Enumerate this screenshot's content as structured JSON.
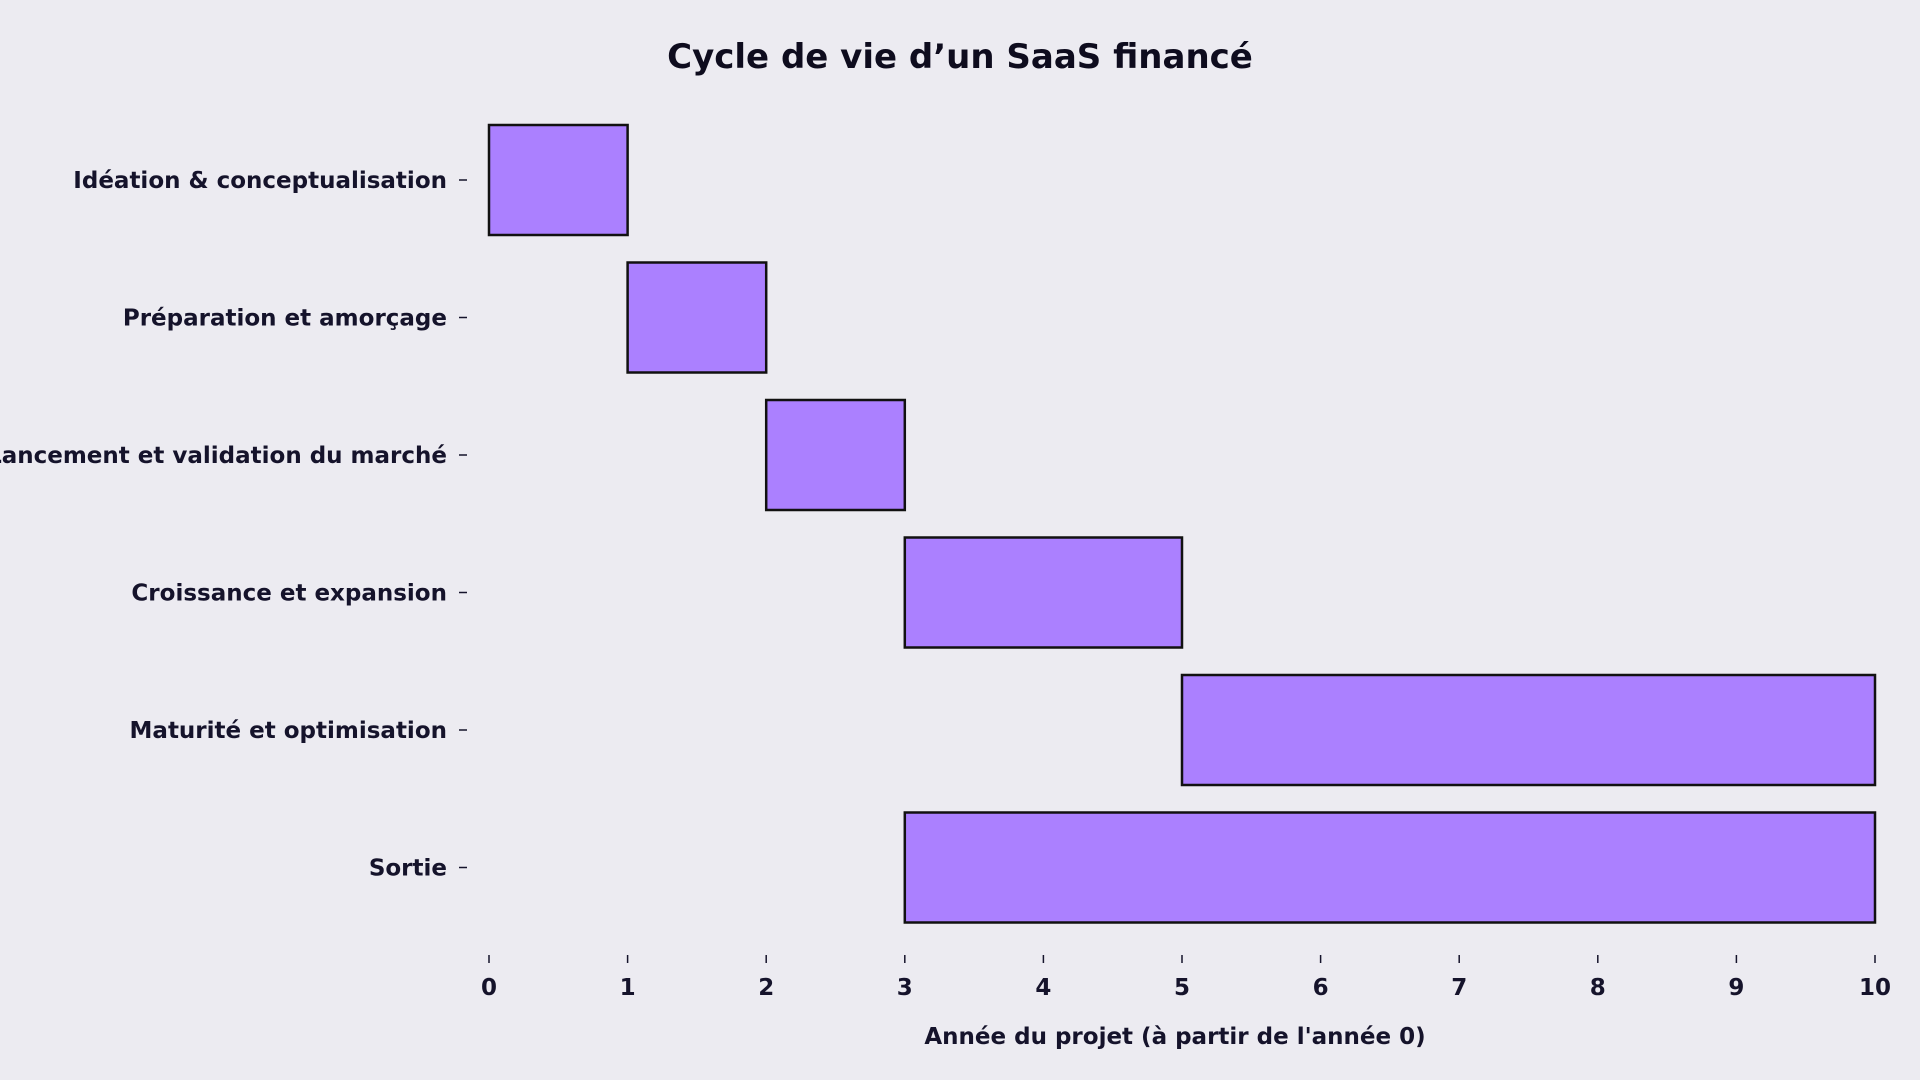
{
  "chart_data": {
    "type": "bar",
    "orientation": "horizontal",
    "title": "Cycle de vie d’un SaaS financé",
    "xlabel": "Année du projet (à partir de l'année 0)",
    "ylabel": "",
    "xlim": [
      0,
      10
    ],
    "xticks": [
      "0",
      "1",
      "2",
      "3",
      "4",
      "5",
      "6",
      "7",
      "8",
      "9",
      "10"
    ],
    "grid": false,
    "legend": "none",
    "categories": [
      "Idéation & conceptualisation",
      "Préparation et amorçage",
      "Lancement et validation du marché",
      "Croissance et expansion",
      "Maturité et optimisation",
      "Sortie"
    ],
    "start": [
      0,
      1,
      2,
      3,
      5,
      3
    ],
    "end": [
      1,
      2,
      3,
      5,
      10,
      10
    ],
    "colors": {
      "bar_fill": "#AB80FF",
      "bar_edge": "#111111",
      "background": "#ECEBF1",
      "text": "#15132B"
    }
  }
}
